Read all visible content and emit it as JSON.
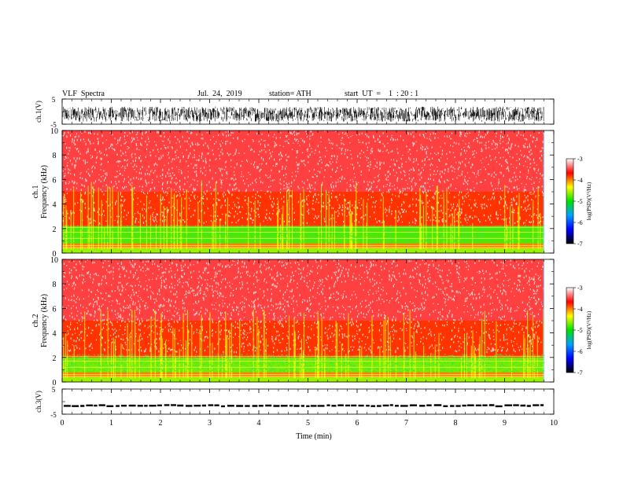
{
  "header": {
    "title": "VLF  Spectra",
    "date": "Jul.  24,  2019",
    "station": "station= ATH",
    "start_ut": "start  UT  =    1  : 20 : 1"
  },
  "chart_data": [
    {
      "type": "line",
      "ylabel": "ch.1(V)",
      "ylim": [
        -5,
        5
      ],
      "yticks": [
        "5",
        "-5"
      ],
      "x_range_min": [
        0,
        10
      ],
      "data_extent_min": [
        0,
        9.8
      ],
      "description": "dense noisy waveform, roughly -4 to 2 V",
      "series": [
        {
          "values_min": [
            -4,
            2
          ],
          "color": "#000000"
        }
      ]
    },
    {
      "type": "heatmap",
      "ylabel_top": "ch.1",
      "ylabel": "Frequency  (kHz)",
      "ylim": [
        0,
        10
      ],
      "yticks": [
        "0",
        "2",
        "4",
        "6",
        "8",
        "10"
      ],
      "x_range_min": [
        0,
        10
      ],
      "data_extent_min": [
        0,
        9.8
      ],
      "colorbar": {
        "label": "log(PSD)(V²/Hz)",
        "range": [
          -7,
          -3
        ],
        "ticks": [
          "-3",
          "-4",
          "-5",
          "-6",
          "-7"
        ],
        "colors": [
          "#000000",
          "#0000ff",
          "#00a0ff",
          "#00e000",
          "#ffff00",
          "#ff0000",
          "#ffffff"
        ]
      },
      "bands_khz": [
        {
          "from": 0.0,
          "to": 0.4,
          "level": -4.6
        },
        {
          "from": 0.4,
          "to": 0.8,
          "level": -4.0
        },
        {
          "from": 0.8,
          "to": 2.2,
          "level": -4.8
        },
        {
          "from": 2.2,
          "to": 5.0,
          "level": -3.8
        },
        {
          "from": 5.0,
          "to": 10.0,
          "level": -3.5
        }
      ]
    },
    {
      "type": "heatmap",
      "ylabel_top": "ch.2",
      "ylabel": "Frequency  (kHz)",
      "ylim": [
        0,
        10
      ],
      "yticks": [
        "0",
        "2",
        "4",
        "6",
        "8",
        "10"
      ],
      "x_range_min": [
        0,
        10
      ],
      "data_extent_min": [
        0,
        9.8
      ],
      "colorbar": {
        "label": "log(PSD)(V²/Hz)",
        "range": [
          -7,
          -3
        ],
        "ticks": [
          "-3",
          "-4",
          "-5",
          "-6",
          "-7"
        ],
        "colors": [
          "#000000",
          "#0000ff",
          "#00a0ff",
          "#00e000",
          "#ffff00",
          "#ff0000",
          "#ffffff"
        ]
      },
      "bands_khz": [
        {
          "from": 0.0,
          "to": 0.4,
          "level": -4.6
        },
        {
          "from": 0.4,
          "to": 0.8,
          "level": -4.0
        },
        {
          "from": 0.8,
          "to": 2.0,
          "level": -4.7
        },
        {
          "from": 2.0,
          "to": 5.0,
          "level": -3.8
        },
        {
          "from": 5.0,
          "to": 10.0,
          "level": -3.5
        }
      ]
    },
    {
      "type": "line",
      "ylabel": "ch.3(V)",
      "ylim": [
        -5,
        5
      ],
      "yticks": [
        "5",
        "-5"
      ],
      "x_range_min": [
        0,
        10
      ],
      "data_extent_min": [
        0,
        9.8
      ],
      "description": "near-constant dashed trace at about -1.6 V",
      "series": [
        {
          "level_v": -1.6,
          "color": "#000000"
        }
      ]
    }
  ],
  "xaxis": {
    "label": "Time  (min)",
    "ticks": [
      "0",
      "1",
      "2",
      "3",
      "4",
      "5",
      "6",
      "7",
      "8",
      "9",
      "10"
    ],
    "range": [
      0,
      10
    ]
  }
}
